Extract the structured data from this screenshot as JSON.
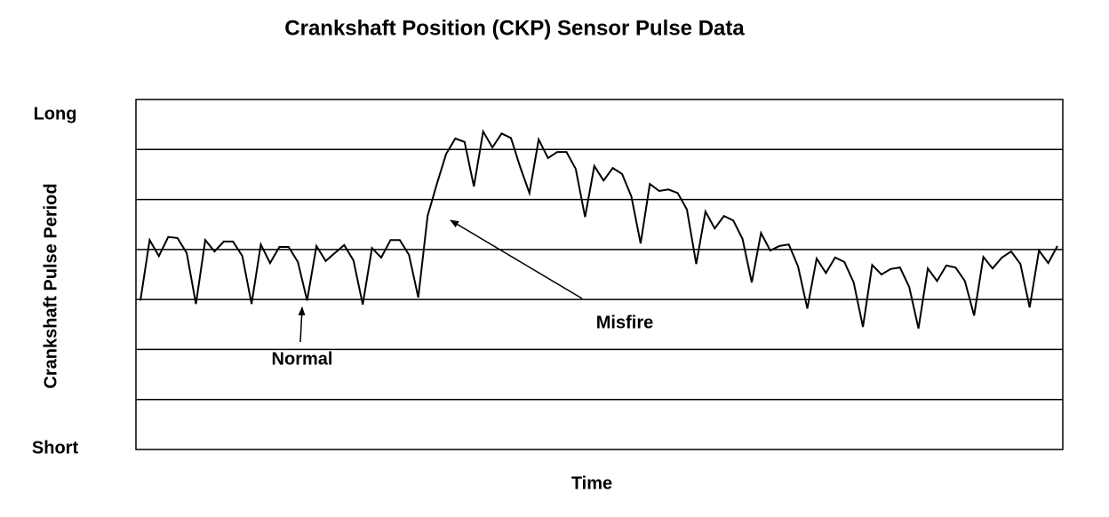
{
  "chart_data": {
    "type": "line",
    "title": "Crankshaft Position (CKP) Sensor Pulse Data",
    "x_label": "Time",
    "y_label": "Crankshaft Pulse Period",
    "ylim": [
      0,
      7
    ],
    "yticks": [
      {
        "value": 0,
        "label": "Short"
      },
      {
        "value": 7,
        "label": "Long"
      }
    ],
    "grid_lines": [
      1,
      2,
      3,
      4,
      5,
      6
    ],
    "color": "#000000",
    "values": [
      2.98,
      4.19,
      3.87,
      4.25,
      4.23,
      3.93,
      2.91,
      4.19,
      3.96,
      4.16,
      4.16,
      3.87,
      2.91,
      4.1,
      3.73,
      4.05,
      4.05,
      3.75,
      2.98,
      4.07,
      3.77,
      3.93,
      4.09,
      3.78,
      2.9,
      4.03,
      3.84,
      4.19,
      4.19,
      3.89,
      3.04,
      4.67,
      5.31,
      5.91,
      6.22,
      6.15,
      5.26,
      6.36,
      6.04,
      6.32,
      6.23,
      5.65,
      5.13,
      6.2,
      5.83,
      5.95,
      5.95,
      5.61,
      4.65,
      5.67,
      5.38,
      5.63,
      5.51,
      5.06,
      4.12,
      5.31,
      5.17,
      5.2,
      5.13,
      4.8,
      3.71,
      4.76,
      4.42,
      4.67,
      4.58,
      4.21,
      3.34,
      4.33,
      3.98,
      4.07,
      4.1,
      3.66,
      2.82,
      3.82,
      3.53,
      3.84,
      3.75,
      3.34,
      2.45,
      3.69,
      3.5,
      3.61,
      3.64,
      3.25,
      2.42,
      3.62,
      3.37,
      3.68,
      3.64,
      3.37,
      2.68,
      3.85,
      3.62,
      3.84,
      3.96,
      3.71,
      2.84,
      3.98,
      3.73,
      4.07
    ],
    "annotations": [
      {
        "text": "Normal"
      },
      {
        "text": "Misfire"
      }
    ]
  }
}
